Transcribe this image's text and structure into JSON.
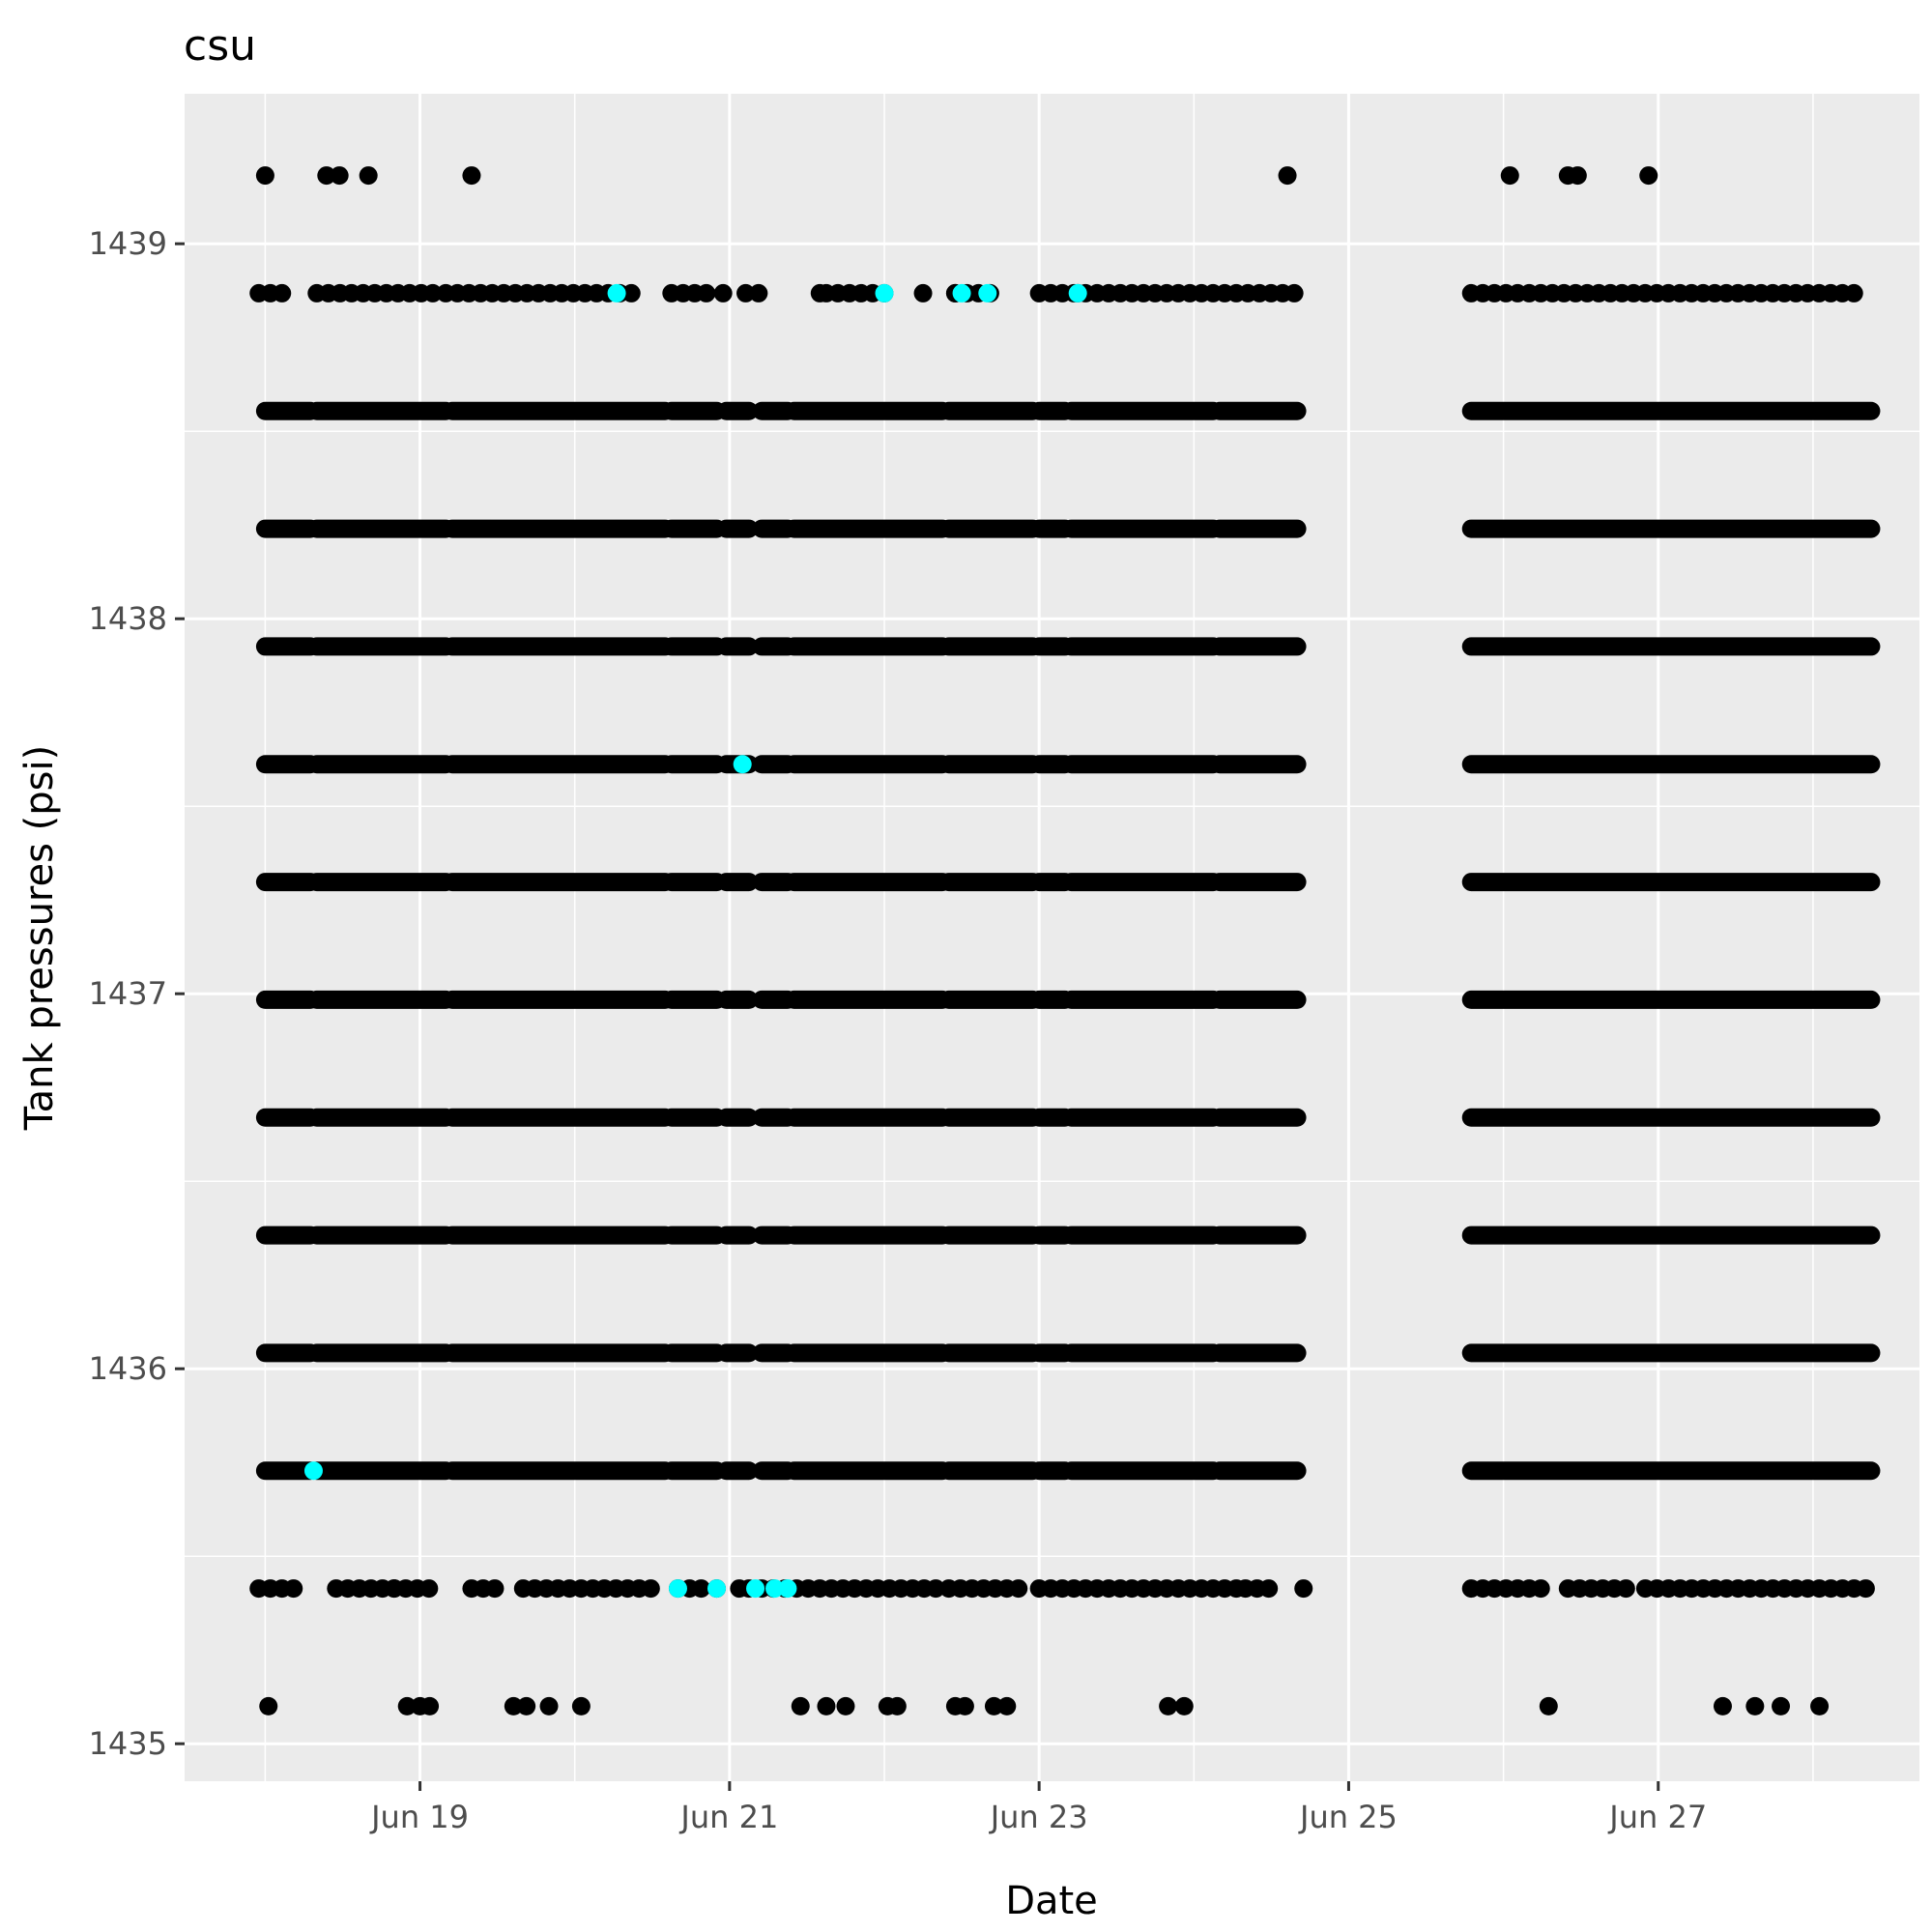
{
  "chart_data": {
    "type": "scatter",
    "title": "csu",
    "xlabel": "Date",
    "ylabel": "Tank pressures (psi)",
    "x_axis": {
      "type": "date",
      "range": [
        "2023-06-17T11:30",
        "2023-06-28T16:30"
      ],
      "ticks": [
        "2023-06-19T00:00",
        "2023-06-21T00:00",
        "2023-06-23T00:00",
        "2023-06-25T00:00",
        "2023-06-27T00:00"
      ],
      "tick_labels": [
        "Jun 19",
        "Jun 21",
        "Jun 23",
        "Jun 25",
        "Jun 27"
      ]
    },
    "y_axis": {
      "range": [
        1434.9,
        1439.4
      ],
      "ticks": [
        1435,
        1436,
        1437,
        1438,
        1439
      ],
      "tick_labels": [
        "1435",
        "1436",
        "1437",
        "1438",
        "1439"
      ]
    },
    "grid": true,
    "legend": "none",
    "colors": {
      "panel_background": "#ebebeb",
      "grid_line": "#ffffff",
      "point": "#000000",
      "highlight_point": "#00ffff",
      "tick_label": "#4d4d4d",
      "tick_mark": "#333333"
    },
    "pressure_levels": [
      1435.1,
      1435.414,
      1435.728,
      1436.042,
      1436.356,
      1436.67,
      1436.984,
      1437.298,
      1437.612,
      1437.926,
      1438.24,
      1438.554,
      1438.868,
      1439.182
    ],
    "dense_segments": [
      [
        "2023-06-18T00:00",
        "2023-06-18T07:00"
      ],
      [
        "2023-06-18T08:00",
        "2023-06-19T04:00"
      ],
      [
        "2023-06-19T05:00",
        "2023-06-20T14:00"
      ],
      [
        "2023-06-20T15:00",
        "2023-06-20T22:00"
      ],
      [
        "2023-06-20T23:30",
        "2023-06-21T03:00"
      ],
      [
        "2023-06-21T05:00",
        "2023-06-21T09:00"
      ],
      [
        "2023-06-21T10:00",
        "2023-06-22T09:00"
      ],
      [
        "2023-06-22T10:00",
        "2023-06-22T23:00"
      ],
      [
        "2023-06-23T00:00",
        "2023-06-23T04:00"
      ],
      [
        "2023-06-23T05:00",
        "2023-06-24T03:00"
      ],
      [
        "2023-06-24T04:00",
        "2023-06-24T16:00"
      ],
      [
        "2023-06-25T19:00",
        "2023-06-28T09:00"
      ]
    ],
    "series": [
      {
        "y": 1439.182,
        "x": [
          "2023-06-18T00:00",
          "2023-06-18T09:30",
          "2023-06-18T11:30",
          "2023-06-18T16:00",
          "2023-06-19T08:00",
          "2023-06-24T14:30",
          "2023-06-26T01:00",
          "2023-06-26T10:00",
          "2023-06-26T11:30",
          "2023-06-26T22:30"
        ]
      },
      {
        "y": 1438.868,
        "x_range": [
          [
            "2023-06-17T23:00",
            "2023-06-18T04:00"
          ],
          [
            "2023-06-18T08:00",
            "2023-06-19T02:00"
          ],
          [
            "2023-06-19T04:00",
            "2023-06-20T09:00"
          ],
          [
            "2023-06-20T15:00",
            "2023-06-20T21:00"
          ],
          [
            "2023-06-21T14:00",
            "2023-06-21T15:00"
          ],
          [
            "2023-06-21T15:00",
            "2023-06-22T01:00"
          ],
          [
            "2023-06-22T11:00",
            "2023-06-22T17:00"
          ],
          [
            "2023-06-23T00:00",
            "2023-06-24T16:00"
          ],
          [
            "2023-06-25T19:00",
            "2023-06-28T07:00"
          ]
        ],
        "x": [
          "2023-06-20T23:00",
          "2023-06-21T02:30",
          "2023-06-21T04:30",
          "2023-06-22T06:00",
          "2023-06-22T11:00",
          "2023-06-23T06:00"
        ]
      },
      {
        "y": 1435.414,
        "x_range": [
          [
            "2023-06-17T23:00",
            "2023-06-18T06:00"
          ],
          [
            "2023-06-18T11:00",
            "2023-06-19T03:00"
          ],
          [
            "2023-06-19T08:00",
            "2023-06-19T12:00"
          ],
          [
            "2023-06-19T16:00",
            "2023-06-20T12:00"
          ],
          [
            "2023-06-20T16:00",
            "2023-06-20T20:00"
          ],
          [
            "2023-06-21T05:00",
            "2023-06-22T08:00"
          ],
          [
            "2023-06-22T10:00",
            "2023-06-22T22:00"
          ],
          [
            "2023-06-23T00:00",
            "2023-06-24T07:00"
          ],
          [
            "2023-06-24T08:00",
            "2023-06-24T13:00"
          ],
          [
            "2023-06-25T19:00",
            "2023-06-26T06:00"
          ],
          [
            "2023-06-26T10:00",
            "2023-06-26T20:00"
          ],
          [
            "2023-06-26T22:00",
            "2023-06-28T09:00"
          ]
        ],
        "x": [
          "2023-06-18T20:00",
          "2023-06-20T22:00",
          "2023-06-21T01:30",
          "2023-06-21T03:00",
          "2023-06-24T17:00"
        ]
      },
      {
        "y": 1435.1,
        "x": [
          "2023-06-18T00:30",
          "2023-06-18T22:00",
          "2023-06-19T00:00",
          "2023-06-19T01:30",
          "2023-06-19T14:30",
          "2023-06-19T16:30",
          "2023-06-19T20:00",
          "2023-06-20T01:00",
          "2023-06-21T11:00",
          "2023-06-21T15:00",
          "2023-06-21T18:00",
          "2023-06-22T00:30",
          "2023-06-22T02:00",
          "2023-06-22T11:00",
          "2023-06-22T12:30",
          "2023-06-22T17:00",
          "2023-06-22T19:00",
          "2023-06-23T20:00",
          "2023-06-23T22:30",
          "2023-06-26T07:00",
          "2023-06-27T10:00",
          "2023-06-27T15:00",
          "2023-06-27T19:00",
          "2023-06-28T01:00"
        ]
      },
      {
        "name_hidden": true,
        "color": "#00ffff",
        "points": [
          [
            "2023-06-20T06:30",
            1438.868
          ],
          [
            "2023-06-22T00:00",
            1438.868
          ],
          [
            "2023-06-22T12:00",
            1438.868
          ],
          [
            "2023-06-22T16:00",
            1438.868
          ],
          [
            "2023-06-23T06:00",
            1438.868
          ],
          [
            "2023-06-21T02:00",
            1437.612
          ],
          [
            "2023-06-18T07:30",
            1435.728
          ],
          [
            "2023-06-20T16:00",
            1435.414
          ],
          [
            "2023-06-20T22:00",
            1435.414
          ],
          [
            "2023-06-21T04:00",
            1435.414
          ],
          [
            "2023-06-21T07:00",
            1435.414
          ],
          [
            "2023-06-21T09:00",
            1435.414
          ]
        ]
      }
    ]
  }
}
